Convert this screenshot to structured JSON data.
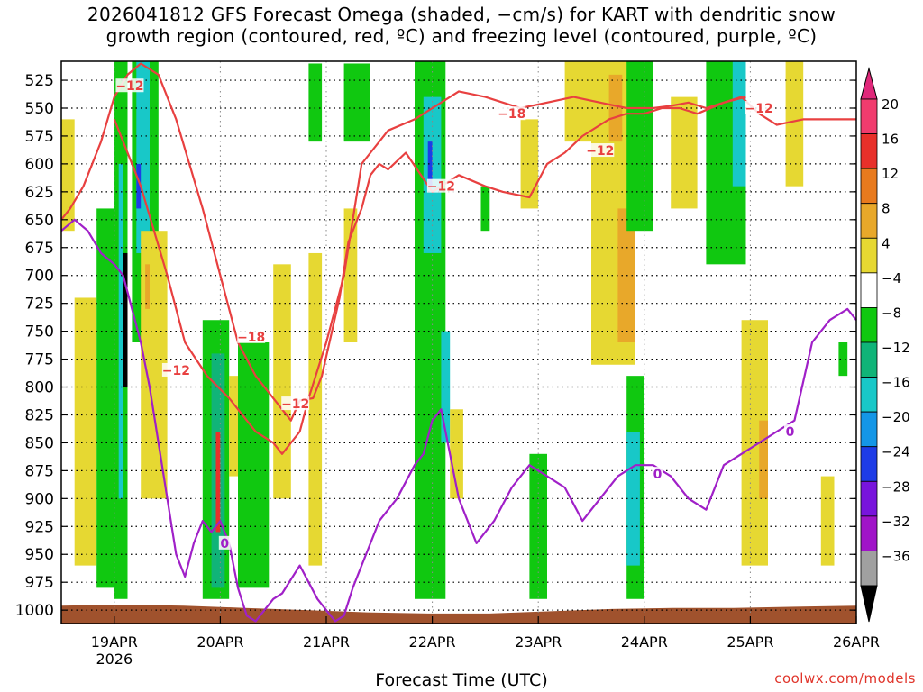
{
  "title": {
    "line1": "2026041812 GFS Forecast Omega (shaded, −cm/s) for KART with dendritic snow",
    "line2": "growth region (contoured, red, ºC) and freezing level (contoured, purple, ºC)"
  },
  "watermark": "coolwx.com/models",
  "chart_data": {
    "type": "heatmap",
    "title": "2026041812 GFS Forecast Omega (shaded, −cm/s) for KART with dendritic snow growth region (contoured, red, ºC) and freezing level (contoured, purple, ºC)",
    "xlabel": "Forecast Time (UTC)",
    "ylabel": "",
    "x_ticks": [
      {
        "label": "19APR",
        "sub": "2026",
        "hour": 12
      },
      {
        "label": "20APR",
        "sub": "",
        "hour": 36
      },
      {
        "label": "21APR",
        "sub": "",
        "hour": 60
      },
      {
        "label": "22APR",
        "sub": "",
        "hour": 84
      },
      {
        "label": "23APR",
        "sub": "",
        "hour": 108
      },
      {
        "label": "24APR",
        "sub": "",
        "hour": 132
      },
      {
        "label": "25APR",
        "sub": "",
        "hour": 156
      },
      {
        "label": "26APR",
        "sub": "",
        "hour": 180
      }
    ],
    "xlim": [
      0,
      180
    ],
    "y_ticks": [
      525,
      550,
      575,
      600,
      625,
      650,
      675,
      700,
      725,
      750,
      775,
      800,
      825,
      850,
      875,
      900,
      925,
      950,
      975,
      1000
    ],
    "ylim": [
      1012,
      508
    ],
    "grid": true,
    "colorbar": {
      "labels": [
        "20",
        "16",
        "12",
        "8",
        "4",
        "−4",
        "−8",
        "−12",
        "−16",
        "−20",
        "−24",
        "−28",
        "−32",
        "−36"
      ],
      "colors": [
        "#f03c6e",
        "#e8302a",
        "#e87a1e",
        "#e8a82a",
        "#e6d832",
        "#ffffff",
        "#10c810",
        "#10b478",
        "#18c8c8",
        "#1496e6",
        "#1e3ce6",
        "#7814dc",
        "#a014c8",
        "#a0a0a0"
      ],
      "over_color": "#e0287a",
      "under_color": "#000000"
    },
    "shaded_regions": [
      {
        "color": "#e6d832",
        "x": [
          0,
          3
        ],
        "p": [
          560,
          660
        ]
      },
      {
        "color": "#e6d832",
        "x": [
          3,
          8
        ],
        "p": [
          720,
          960
        ]
      },
      {
        "color": "#10c810",
        "x": [
          8,
          12
        ],
        "p": [
          640,
          980
        ]
      },
      {
        "color": "#10c810",
        "x": [
          12,
          15
        ],
        "p": [
          508,
          990
        ]
      },
      {
        "color": "#18c8c8",
        "x": [
          13,
          14
        ],
        "p": [
          600,
          900
        ]
      },
      {
        "color": "#000000",
        "x": [
          14,
          15
        ],
        "p": [
          680,
          800
        ]
      },
      {
        "color": "#10c810",
        "x": [
          16,
          22
        ],
        "p": [
          508,
          760
        ]
      },
      {
        "color": "#18c8c8",
        "x": [
          17,
          20
        ],
        "p": [
          508,
          680
        ]
      },
      {
        "color": "#1e3ce6",
        "x": [
          17,
          18
        ],
        "p": [
          600,
          640
        ]
      },
      {
        "color": "#e6d832",
        "x": [
          18,
          24
        ],
        "p": [
          660,
          900
        ]
      },
      {
        "color": "#e8a82a",
        "x": [
          19,
          20
        ],
        "p": [
          690,
          730
        ]
      },
      {
        "color": "#10c810",
        "x": [
          32,
          38
        ],
        "p": [
          740,
          990
        ]
      },
      {
        "color": "#10b478",
        "x": [
          34,
          37
        ],
        "p": [
          770,
          980
        ]
      },
      {
        "color": "#e8302a",
        "x": [
          35,
          36
        ],
        "p": [
          840,
          930
        ]
      },
      {
        "color": "#e6d832",
        "x": [
          38,
          41
        ],
        "p": [
          790,
          880
        ]
      },
      {
        "color": "#10c810",
        "x": [
          40,
          47
        ],
        "p": [
          760,
          980
        ]
      },
      {
        "color": "#e6d832",
        "x": [
          48,
          52
        ],
        "p": [
          690,
          900
        ]
      },
      {
        "color": "#e6d832",
        "x": [
          56,
          59
        ],
        "p": [
          680,
          960
        ]
      },
      {
        "color": "#10c810",
        "x": [
          56,
          59
        ],
        "p": [
          510,
          580
        ]
      },
      {
        "color": "#10c810",
        "x": [
          64,
          70
        ],
        "p": [
          510,
          580
        ]
      },
      {
        "color": "#e6d832",
        "x": [
          64,
          67
        ],
        "p": [
          640,
          760
        ]
      },
      {
        "color": "#10c810",
        "x": [
          80,
          87
        ],
        "p": [
          508,
          990
        ]
      },
      {
        "color": "#18c8c8",
        "x": [
          82,
          86
        ],
        "p": [
          540,
          680
        ]
      },
      {
        "color": "#1e3ce6",
        "x": [
          83,
          84
        ],
        "p": [
          580,
          620
        ]
      },
      {
        "color": "#18c8c8",
        "x": [
          86,
          88
        ],
        "p": [
          750,
          850
        ]
      },
      {
        "color": "#e6d832",
        "x": [
          88,
          91
        ],
        "p": [
          820,
          900
        ]
      },
      {
        "color": "#10c810",
        "x": [
          95,
          97
        ],
        "p": [
          620,
          660
        ]
      },
      {
        "color": "#e6d832",
        "x": [
          104,
          108
        ],
        "p": [
          560,
          640
        ]
      },
      {
        "color": "#10c810",
        "x": [
          106,
          110
        ],
        "p": [
          860,
          990
        ]
      },
      {
        "color": "#e6d832",
        "x": [
          114,
          120
        ],
        "p": [
          508,
          580
        ]
      },
      {
        "color": "#e6d832",
        "x": [
          120,
          130
        ],
        "p": [
          508,
          780
        ]
      },
      {
        "color": "#e8a82a",
        "x": [
          124,
          127
        ],
        "p": [
          520,
          580
        ]
      },
      {
        "color": "#e8a82a",
        "x": [
          126,
          130
        ],
        "p": [
          640,
          760
        ]
      },
      {
        "color": "#10c810",
        "x": [
          128,
          134
        ],
        "p": [
          508,
          660
        ]
      },
      {
        "color": "#10c810",
        "x": [
          128,
          132
        ],
        "p": [
          790,
          990
        ]
      },
      {
        "color": "#18c8c8",
        "x": [
          128,
          131
        ],
        "p": [
          840,
          960
        ]
      },
      {
        "color": "#e6d832",
        "x": [
          138,
          144
        ],
        "p": [
          540,
          640
        ]
      },
      {
        "color": "#10c810",
        "x": [
          146,
          155
        ],
        "p": [
          508,
          690
        ]
      },
      {
        "color": "#18c8c8",
        "x": [
          152,
          155
        ],
        "p": [
          508,
          620
        ]
      },
      {
        "color": "#e6d832",
        "x": [
          154,
          160
        ],
        "p": [
          740,
          960
        ]
      },
      {
        "color": "#e8a82a",
        "x": [
          158,
          160
        ],
        "p": [
          830,
          900
        ]
      },
      {
        "color": "#e6d832",
        "x": [
          164,
          168
        ],
        "p": [
          508,
          620
        ]
      },
      {
        "color": "#e6d832",
        "x": [
          172,
          175
        ],
        "p": [
          880,
          960
        ]
      },
      {
        "color": "#10c810",
        "x": [
          176,
          178
        ],
        "p": [
          760,
          790
        ]
      }
    ],
    "contours": [
      {
        "color": "#e84040",
        "type": "dendritic",
        "label": "−12",
        "x": [
          0,
          2,
          5,
          9,
          12,
          15,
          18,
          22,
          26,
          32,
          36,
          40,
          44,
          48,
          50,
          52,
          54,
          57,
          59,
          63,
          65,
          68,
          70,
          72,
          74,
          78,
          84,
          90,
          96,
          100,
          106,
          110,
          114,
          118,
          124,
          128,
          132,
          136,
          140,
          144,
          150,
          155
        ],
        "p": [
          650,
          640,
          620,
          580,
          540,
          520,
          510,
          520,
          560,
          640,
          700,
          760,
          790,
          810,
          820,
          830,
          812,
          810,
          790,
          720,
          670,
          640,
          610,
          600,
          605,
          590,
          625,
          610,
          620,
          625,
          630,
          600,
          590,
          575,
          560,
          555,
          555,
          550,
          550,
          555,
          545,
          540
        ]
      },
      {
        "color": "#e84040",
        "type": "dendritic",
        "label": "−18",
        "x": [
          12,
          18,
          24,
          28,
          33,
          38,
          44,
          48,
          50,
          54,
          56,
          60,
          64,
          66,
          68,
          70,
          74,
          80,
          86,
          90,
          96,
          100,
          104,
          110,
          116,
          122,
          128,
          134,
          138,
          142,
          146,
          150,
          154,
          158,
          162,
          168,
          174,
          180
        ],
        "p": [
          560,
          620,
          700,
          760,
          790,
          810,
          840,
          850,
          860,
          840,
          810,
          760,
          700,
          650,
          600,
          590,
          570,
          560,
          545,
          535,
          540,
          545,
          550,
          545,
          540,
          545,
          550,
          550,
          548,
          545,
          550,
          545,
          540,
          555,
          565,
          560,
          560,
          560
        ]
      },
      {
        "color": "#a020c8",
        "type": "freezing",
        "label": "0",
        "x": [
          0,
          3,
          6,
          9,
          12,
          14,
          16,
          18,
          20,
          22,
          24,
          26,
          28,
          30,
          32,
          34,
          36,
          38,
          40,
          42,
          44,
          46,
          48,
          50,
          54,
          58,
          62,
          64,
          66,
          68,
          70,
          72,
          76,
          80,
          82,
          84,
          86,
          88,
          90,
          94,
          98,
          102,
          106,
          110,
          114,
          118,
          122,
          126,
          130,
          134,
          138,
          142,
          146,
          150,
          154,
          158,
          162,
          166,
          170,
          174,
          178,
          180
        ],
        "p": [
          660,
          650,
          660,
          680,
          690,
          700,
          730,
          760,
          800,
          850,
          900,
          950,
          970,
          940,
          920,
          930,
          920,
          940,
          980,
          1005,
          1010,
          1000,
          990,
          985,
          960,
          990,
          1010,
          1005,
          980,
          960,
          940,
          920,
          900,
          870,
          860,
          830,
          820,
          860,
          900,
          940,
          920,
          890,
          870,
          880,
          890,
          920,
          900,
          880,
          870,
          870,
          880,
          900,
          910,
          870,
          860,
          850,
          840,
          830,
          760,
          740,
          730,
          740
        ]
      }
    ],
    "contour_labels": [
      {
        "text": "−12",
        "hour": 15.5,
        "p": 530,
        "color": "#e84040"
      },
      {
        "text": "−12",
        "hour": 26,
        "p": 785,
        "color": "#e84040"
      },
      {
        "text": "−18",
        "hour": 43,
        "p": 755,
        "color": "#e84040"
      },
      {
        "text": "−12",
        "hour": 53,
        "p": 815,
        "color": "#e84040"
      },
      {
        "text": "−12",
        "hour": 86,
        "p": 620,
        "color": "#e84040"
      },
      {
        "text": "−18",
        "hour": 102,
        "p": 555,
        "color": "#e84040"
      },
      {
        "text": "−12",
        "hour": 122,
        "p": 588,
        "color": "#e84040"
      },
      {
        "text": "−12",
        "hour": 158,
        "p": 550,
        "color": "#e84040"
      },
      {
        "text": "0",
        "hour": 37,
        "p": 940,
        "color": "#a020c8"
      },
      {
        "text": "0",
        "hour": 135,
        "p": 878,
        "color": "#a020c8"
      },
      {
        "text": "0",
        "hour": 165,
        "p": 840,
        "color": "#a020c8"
      }
    ],
    "terrain": {
      "color": "#a0522d",
      "p_top": [
        996,
        995,
        996,
        998,
        1000,
        1002,
        1003,
        1003,
        1001,
        999,
        998,
        998,
        997,
        996
      ]
    }
  }
}
